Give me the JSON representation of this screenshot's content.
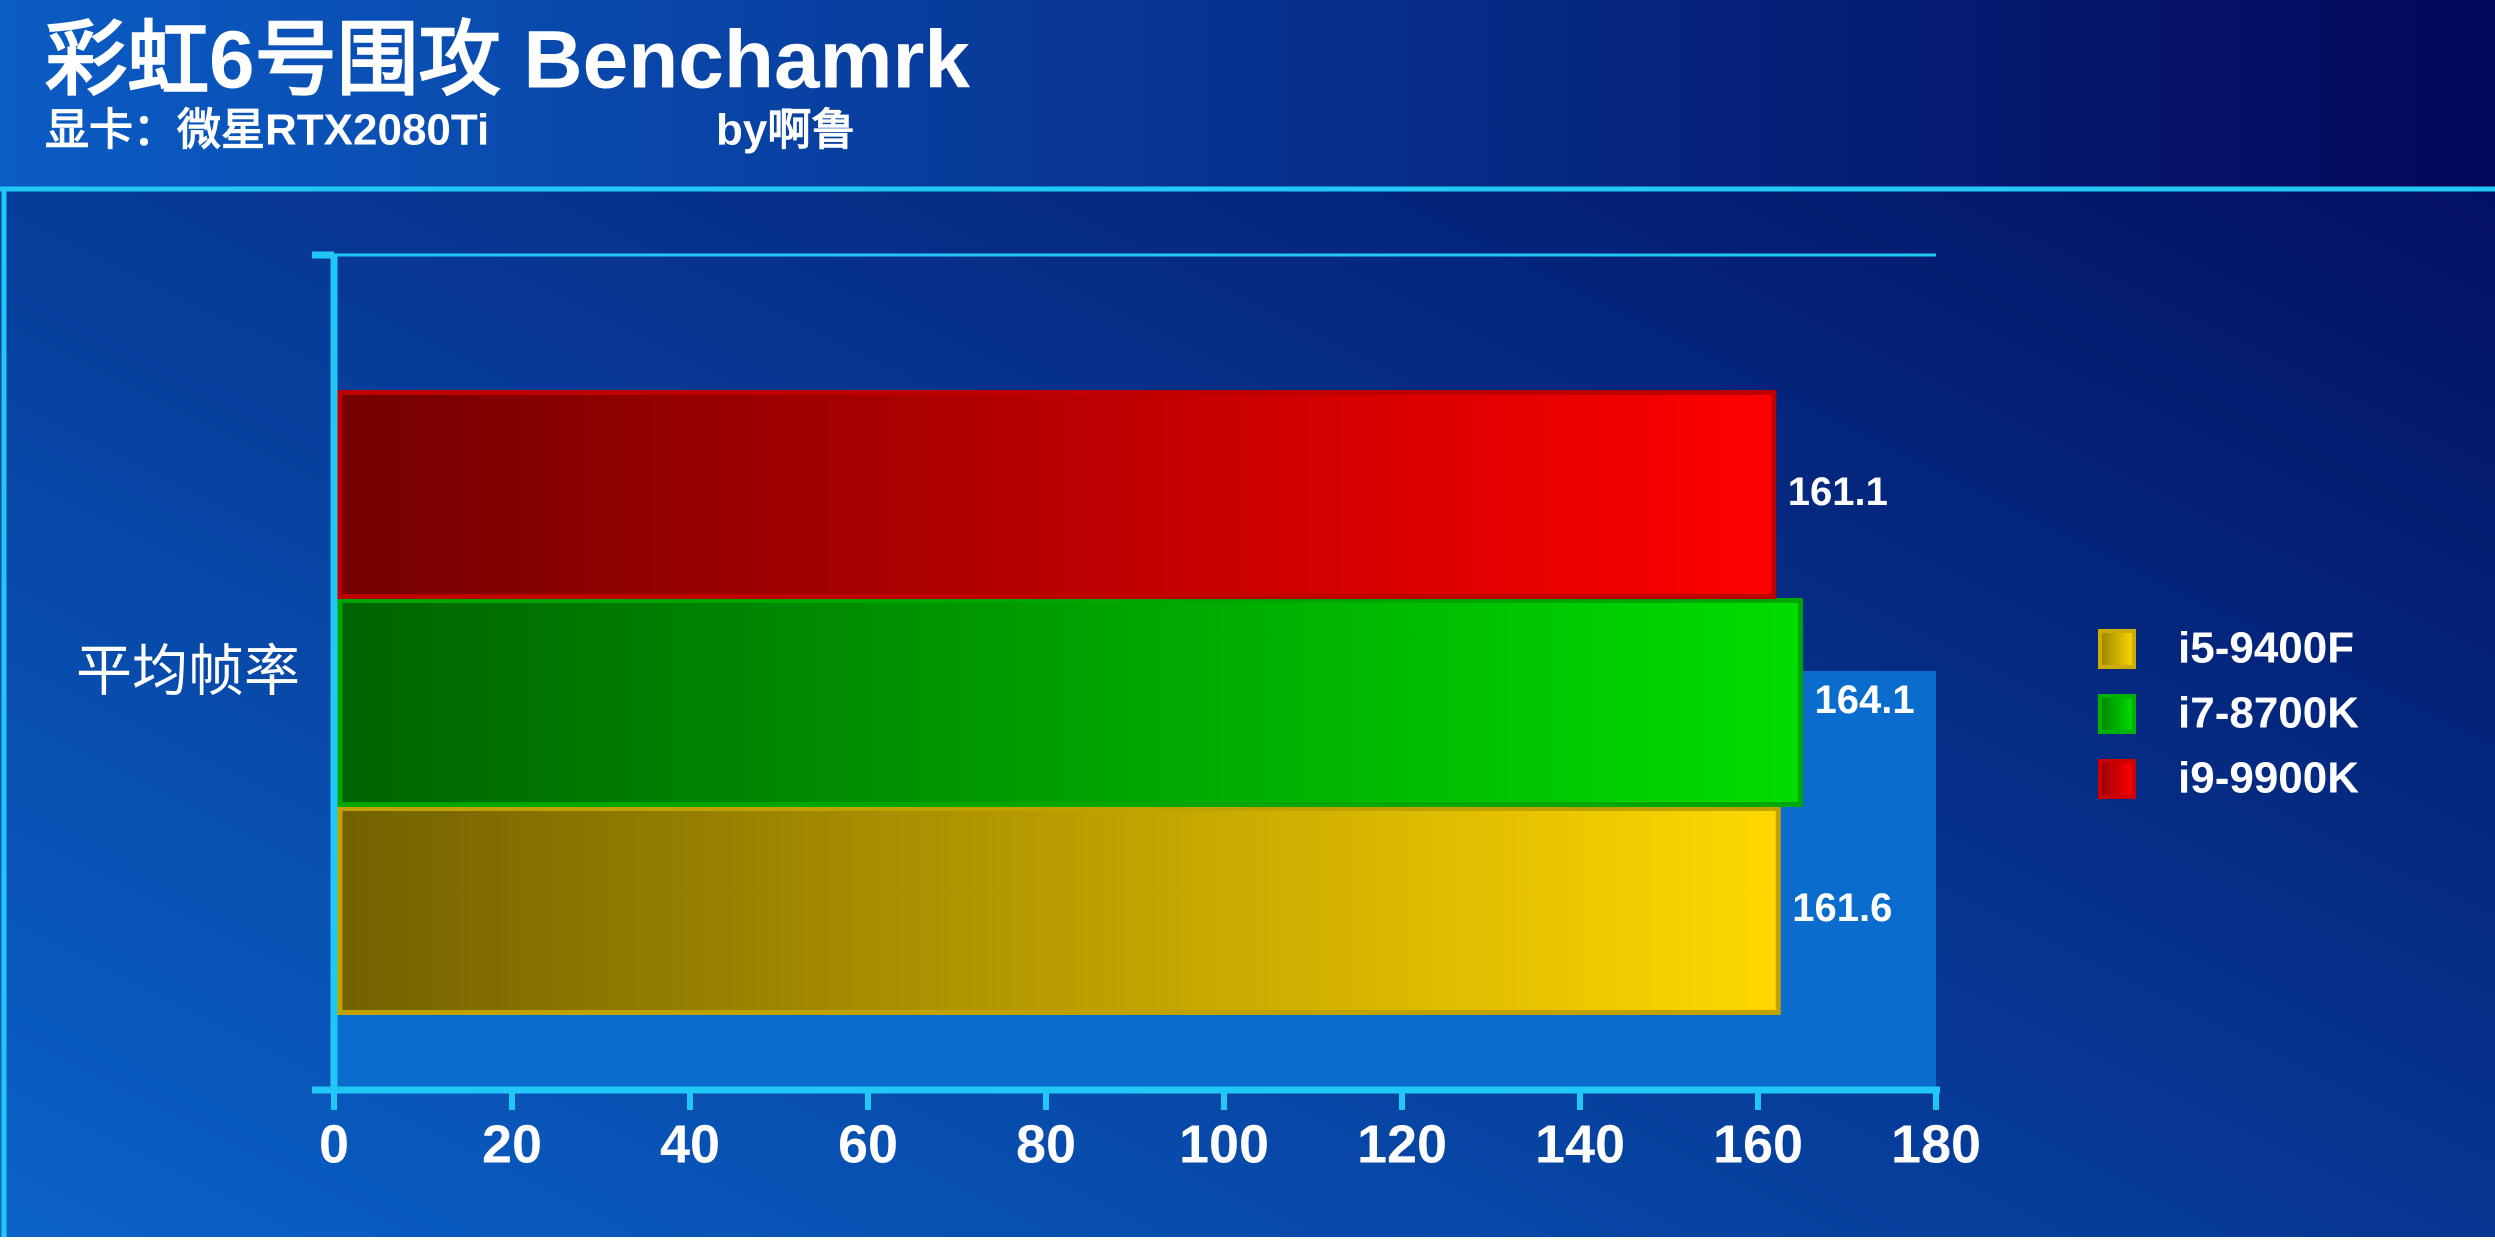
{
  "chart_data": {
    "type": "hbar",
    "title": "彩虹6号围攻 Benchamrk",
    "subtitle": "显卡：微星RTX2080Ti",
    "author": "by啊鲁",
    "categories": [
      "平均帧率"
    ],
    "series": [
      {
        "name": "i5-9400F",
        "color": "#ffd800",
        "values": [
          161.6
        ]
      },
      {
        "name": "i7-8700K",
        "color": "#00dd00",
        "values": [
          164.1
        ]
      },
      {
        "name": "i9-9900K",
        "color": "#ff0000",
        "values": [
          161.1
        ]
      }
    ],
    "xlim": [
      0,
      180
    ],
    "xticks": [
      0,
      20,
      40,
      60,
      80,
      100,
      120,
      140,
      160,
      180
    ],
    "legend": "right"
  }
}
